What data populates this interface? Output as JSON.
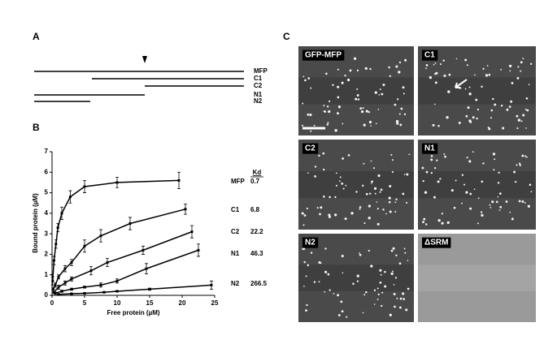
{
  "panel_a": {
    "label": "A",
    "constructs": [
      "MFP",
      "C1",
      "C2",
      "N1",
      "N2"
    ]
  },
  "chart_data": {
    "type": "line",
    "panel_label": "B",
    "xlabel": "Free protein (µM)",
    "ylabel": "Bound protein (µM)",
    "xlim": [
      0,
      25
    ],
    "xticks": [
      0,
      5,
      10,
      15,
      20,
      25
    ],
    "ylim": [
      0,
      7
    ],
    "yticks": [
      0,
      1,
      2,
      3,
      4,
      5,
      6,
      7
    ],
    "color": "#000000",
    "kd_header": "Kd",
    "series": [
      {
        "name": "MFP",
        "kd": "0.7",
        "x": [
          0.1,
          0.3,
          0.6,
          0.9,
          1.5,
          2.8,
          5,
          10,
          19.5
        ],
        "values": [
          0.7,
          1.7,
          2.5,
          3.3,
          4.0,
          4.8,
          5.3,
          5.5,
          5.6
        ],
        "errors": [
          0.2,
          0.2,
          0.2,
          0.2,
          0.3,
          0.3,
          0.3,
          0.25,
          0.4
        ]
      },
      {
        "name": "C1",
        "kd": "6.8",
        "x": [
          0.2,
          0.5,
          1,
          2,
          3,
          5,
          7.5,
          12,
          20.5
        ],
        "values": [
          0.3,
          0.5,
          0.9,
          1.3,
          1.6,
          2.4,
          2.9,
          3.5,
          4.2
        ],
        "errors": [
          0.1,
          0.1,
          0.1,
          0.15,
          0.15,
          0.3,
          0.3,
          0.3,
          0.25
        ]
      },
      {
        "name": "C2",
        "kd": "22.2",
        "x": [
          0.3,
          1,
          2,
          3,
          6,
          8.5,
          14,
          21.5
        ],
        "values": [
          0.15,
          0.4,
          0.6,
          0.8,
          1.2,
          1.6,
          2.2,
          3.1
        ],
        "errors": [
          0.05,
          0.1,
          0.1,
          0.1,
          0.2,
          0.2,
          0.2,
          0.3
        ]
      },
      {
        "name": "N1",
        "kd": "46.3",
        "x": [
          0.5,
          1.5,
          3,
          5,
          7.5,
          10,
          14.5,
          22.5
        ],
        "values": [
          0.1,
          0.2,
          0.3,
          0.4,
          0.5,
          0.7,
          1.3,
          2.2
        ],
        "errors": [
          0.05,
          0.05,
          0.05,
          0.05,
          0.1,
          0.1,
          0.25,
          0.3
        ]
      },
      {
        "name": "N2",
        "kd": "266.5",
        "x": [
          1,
          3,
          5,
          8,
          10,
          15,
          24.5
        ],
        "values": [
          0.05,
          0.08,
          0.1,
          0.15,
          0.2,
          0.3,
          0.5
        ],
        "errors": [
          0.02,
          0.02,
          0.02,
          0.03,
          0.03,
          0.05,
          0.2
        ]
      }
    ]
  },
  "panel_c": {
    "label": "C",
    "images": [
      "GFP-MFP",
      "C1",
      "C2",
      "N1",
      "N2",
      "ΔSRM"
    ]
  }
}
